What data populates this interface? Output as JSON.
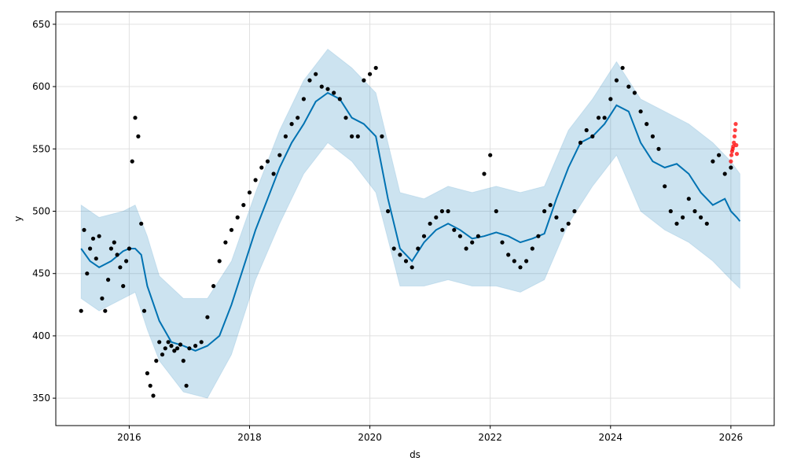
{
  "chart_data": {
    "type": "scatter",
    "xlabel": "ds",
    "ylabel": "y",
    "xlim": [
      2014.78,
      2026.72
    ],
    "ylim": [
      328,
      660
    ],
    "x_ticks": [
      2016,
      2018,
      2020,
      2022,
      2024,
      2026
    ],
    "x_tick_labels": [
      "2016",
      "2018",
      "2020",
      "2022",
      "2024",
      "2026"
    ],
    "y_ticks": [
      350,
      400,
      450,
      500,
      550,
      600,
      650
    ],
    "y_tick_labels": [
      "350",
      "400",
      "450",
      "500",
      "550",
      "600",
      "650"
    ],
    "grid": true,
    "legend": "none",
    "colors": {
      "observed": "#000000",
      "recent_observed": "#ff0000",
      "forecast_line": "#0072b2",
      "interval_fill": "#0072b2",
      "grid": "#e0e0e0"
    },
    "series": [
      {
        "name": "observed",
        "kind": "points",
        "x": [
          2015.2,
          2015.25,
          2015.3,
          2015.35,
          2015.4,
          2015.45,
          2015.5,
          2015.55,
          2015.6,
          2015.65,
          2015.7,
          2015.75,
          2015.8,
          2015.85,
          2015.9,
          2015.95,
          2016.0,
          2016.05,
          2016.1,
          2016.15,
          2016.2,
          2016.25,
          2016.3,
          2016.35,
          2016.4,
          2016.45,
          2016.5,
          2016.55,
          2016.6,
          2016.65,
          2016.7,
          2016.75,
          2016.8,
          2016.85,
          2016.9,
          2016.95,
          2017.0,
          2017.1,
          2017.2,
          2017.3,
          2017.4,
          2017.5,
          2017.6,
          2017.7,
          2017.8,
          2017.9,
          2018.0,
          2018.1,
          2018.2,
          2018.3,
          2018.4,
          2018.5,
          2018.6,
          2018.7,
          2018.8,
          2018.9,
          2019.0,
          2019.1,
          2019.2,
          2019.3,
          2019.4,
          2019.5,
          2019.6,
          2019.7,
          2019.8,
          2019.9,
          2020.0,
          2020.1,
          2020.2,
          2020.3,
          2020.4,
          2020.5,
          2020.6,
          2020.7,
          2020.8,
          2020.9,
          2021.0,
          2021.1,
          2021.2,
          2021.3,
          2021.4,
          2021.5,
          2021.6,
          2021.7,
          2021.8,
          2021.9,
          2022.0,
          2022.1,
          2022.2,
          2022.3,
          2022.4,
          2022.5,
          2022.6,
          2022.7,
          2022.8,
          2022.9,
          2023.0,
          2023.1,
          2023.2,
          2023.3,
          2023.4,
          2023.5,
          2023.6,
          2023.7,
          2023.8,
          2023.9,
          2024.0,
          2024.1,
          2024.2,
          2024.3,
          2024.4,
          2024.5,
          2024.6,
          2024.7,
          2024.8,
          2024.9,
          2025.0,
          2025.1,
          2025.2,
          2025.3,
          2025.4,
          2025.5,
          2025.6,
          2025.7,
          2025.8,
          2025.9,
          2026.0
        ],
        "y": [
          420,
          485,
          450,
          470,
          478,
          462,
          480,
          430,
          420,
          445,
          470,
          475,
          465,
          455,
          440,
          460,
          470,
          540,
          575,
          560,
          490,
          420,
          370,
          360,
          352,
          380,
          395,
          385,
          390,
          395,
          392,
          388,
          390,
          393,
          380,
          360,
          390,
          392,
          395,
          415,
          440,
          460,
          475,
          485,
          495,
          505,
          515,
          525,
          535,
          540,
          530,
          545,
          560,
          570,
          575,
          590,
          605,
          610,
          600,
          598,
          595,
          590,
          575,
          560,
          560,
          605,
          610,
          615,
          560,
          500,
          470,
          465,
          460,
          455,
          470,
          480,
          490,
          495,
          500,
          500,
          485,
          480,
          470,
          475,
          480,
          530,
          545,
          500,
          475,
          465,
          460,
          455,
          460,
          470,
          480,
          500,
          505,
          495,
          485,
          490,
          500,
          555,
          565,
          560,
          575,
          575,
          590,
          605,
          615,
          600,
          595,
          580,
          570,
          560,
          550,
          520,
          500,
          490,
          495,
          510,
          500,
          495,
          490,
          540,
          545,
          530,
          535
        ]
      },
      {
        "name": "recent_observed",
        "kind": "points",
        "x": [
          2026.0,
          2026.01,
          2026.02,
          2026.03,
          2026.04,
          2026.05,
          2026.06,
          2026.07,
          2026.08,
          2026.09,
          2026.1
        ],
        "y": [
          540,
          545,
          548,
          550,
          552,
          555,
          560,
          565,
          570,
          553,
          546
        ]
      },
      {
        "name": "forecast",
        "kind": "line",
        "x": [
          2015.2,
          2015.35,
          2015.5,
          2015.7,
          2015.9,
          2016.0,
          2016.1,
          2016.2,
          2016.3,
          2016.5,
          2016.7,
          2016.9,
          2017.1,
          2017.3,
          2017.5,
          2017.7,
          2017.9,
          2018.1,
          2018.3,
          2018.5,
          2018.7,
          2018.9,
          2019.1,
          2019.3,
          2019.5,
          2019.7,
          2019.9,
          2020.1,
          2020.3,
          2020.5,
          2020.7,
          2020.9,
          2021.1,
          2021.3,
          2021.5,
          2021.7,
          2021.9,
          2022.1,
          2022.3,
          2022.5,
          2022.7,
          2022.9,
          2023.1,
          2023.3,
          2023.5,
          2023.7,
          2023.9,
          2024.1,
          2024.3,
          2024.5,
          2024.7,
          2024.9,
          2025.1,
          2025.3,
          2025.5,
          2025.7,
          2025.9,
          2026.0,
          2026.1,
          2026.15
        ],
        "y": [
          470,
          460,
          455,
          460,
          468,
          470,
          470,
          465,
          440,
          412,
          395,
          392,
          388,
          392,
          400,
          425,
          455,
          485,
          510,
          535,
          555,
          570,
          588,
          595,
          590,
          575,
          570,
          560,
          510,
          470,
          460,
          475,
          485,
          490,
          485,
          478,
          480,
          483,
          480,
          475,
          478,
          482,
          510,
          535,
          555,
          560,
          570,
          585,
          580,
          555,
          540,
          535,
          538,
          530,
          515,
          505,
          510,
          500,
          495,
          492
        ]
      },
      {
        "name": "interval_upper",
        "kind": "band",
        "x": [
          2015.2,
          2015.5,
          2015.9,
          2016.1,
          2016.3,
          2016.5,
          2016.9,
          2017.3,
          2017.7,
          2018.1,
          2018.5,
          2018.9,
          2019.3,
          2019.7,
          2020.1,
          2020.5,
          2020.9,
          2021.3,
          2021.7,
          2022.1,
          2022.5,
          2022.9,
          2023.3,
          2023.7,
          2024.1,
          2024.5,
          2024.9,
          2025.3,
          2025.7,
          2026.0,
          2026.15
        ],
        "y": [
          505,
          495,
          500,
          505,
          480,
          448,
          430,
          430,
          460,
          515,
          565,
          605,
          630,
          615,
          595,
          515,
          510,
          520,
          515,
          520,
          515,
          520,
          565,
          590,
          620,
          590,
          580,
          570,
          555,
          540,
          530
        ]
      },
      {
        "name": "interval_lower",
        "kind": "band",
        "x": [
          2015.2,
          2015.5,
          2015.9,
          2016.1,
          2016.3,
          2016.5,
          2016.9,
          2017.3,
          2017.7,
          2018.1,
          2018.5,
          2018.9,
          2019.3,
          2019.7,
          2020.1,
          2020.5,
          2020.9,
          2021.3,
          2021.7,
          2022.1,
          2022.5,
          2022.9,
          2023.3,
          2023.7,
          2024.1,
          2024.5,
          2024.9,
          2025.3,
          2025.7,
          2026.0,
          2026.15
        ],
        "y": [
          430,
          420,
          430,
          435,
          405,
          380,
          355,
          350,
          385,
          445,
          490,
          530,
          555,
          540,
          515,
          440,
          440,
          445,
          440,
          440,
          435,
          445,
          490,
          520,
          545,
          500,
          485,
          475,
          460,
          445,
          438
        ]
      }
    ]
  }
}
